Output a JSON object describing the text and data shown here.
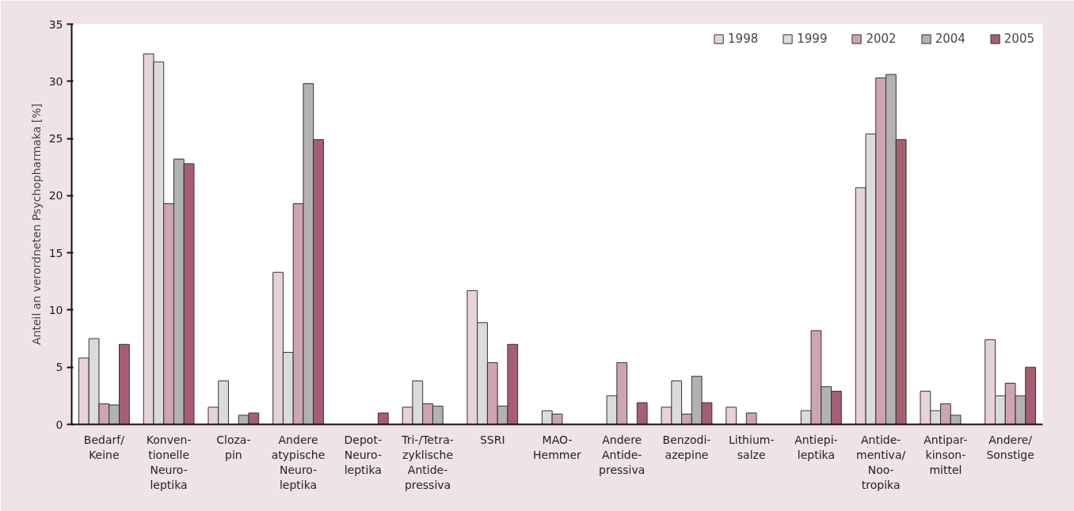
{
  "chart_data": {
    "type": "bar",
    "ylabel": "Anteil an verordneten Psychopharmaka [%]",
    "categories": [
      "Bedarf/\nKeine",
      "Konven-\ntionelle\nNeuro-\nleptika",
      "Cloza-\npin",
      "Andere\natypische\nNeuro-\nleptika",
      "Depot-\nNeuro-\nleptika",
      "Tri-/Tetra-\nzyklische\nAntide-\npressiva",
      "SSRI",
      "MAO-\nHemmer",
      "Andere\nAntide-\npressiva",
      "Benzodi-\nazepine",
      "Lithium-\nsalze",
      "Antiepi-\nleptika",
      "Antide-\nmentiva/\nNoo-\ntropika",
      "Antipar-\nkinson-\nmittel",
      "Andere/\nSonstige"
    ],
    "series": [
      {
        "name": "1998",
        "color": "#e6d3d9",
        "values": [
          5.8,
          32.4,
          1.5,
          13.3,
          null,
          1.5,
          11.7,
          null,
          null,
          1.5,
          1.5,
          null,
          20.7,
          2.9,
          7.4
        ]
      },
      {
        "name": "1999",
        "color": "#dadbdd",
        "values": [
          7.5,
          31.7,
          3.8,
          6.3,
          null,
          3.8,
          8.9,
          1.2,
          2.5,
          3.8,
          null,
          1.2,
          25.4,
          1.2,
          2.5
        ]
      },
      {
        "name": "2002",
        "color": "#cfa4b0",
        "values": [
          1.8,
          19.3,
          null,
          19.3,
          null,
          1.8,
          5.4,
          0.9,
          5.4,
          0.9,
          1.0,
          8.2,
          30.3,
          1.8,
          3.6
        ]
      },
      {
        "name": "2004",
        "color": "#b1b2b4",
        "values": [
          1.7,
          23.2,
          0.8,
          29.8,
          null,
          1.6,
          1.6,
          null,
          null,
          4.2,
          null,
          3.3,
          30.6,
          0.8,
          2.5
        ]
      },
      {
        "name": "2005",
        "color": "#a65f72",
        "values": [
          7.0,
          22.8,
          1.0,
          24.9,
          1.0,
          null,
          7.0,
          null,
          1.9,
          1.9,
          null,
          2.9,
          24.9,
          null,
          5.0
        ]
      }
    ],
    "ylim": [
      0,
      35
    ],
    "yticks": [
      0,
      5,
      10,
      15,
      20,
      25,
      30,
      35
    ],
    "legend": "top right"
  }
}
